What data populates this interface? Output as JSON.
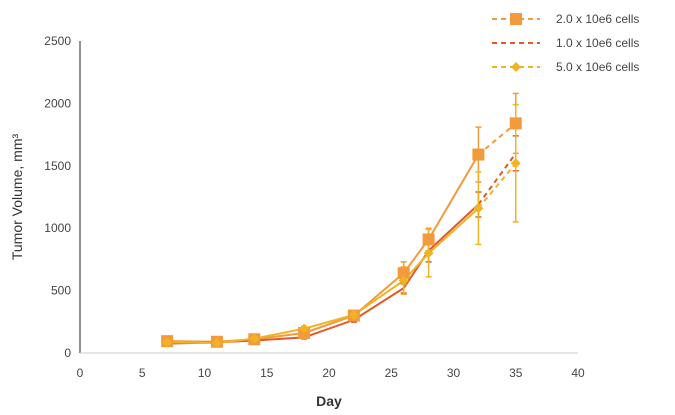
{
  "chart_data": {
    "type": "line",
    "title": "",
    "xlabel": "Day",
    "ylabel": "Tumor Volume, mm³",
    "xlim": [
      0,
      40
    ],
    "ylim": [
      0,
      2500
    ],
    "xticks": [
      0,
      5,
      10,
      15,
      20,
      25,
      30,
      35,
      40
    ],
    "yticks": [
      0,
      500,
      1000,
      1500,
      2000,
      2500
    ],
    "grid": false,
    "legend_position": "top-right",
    "series": [
      {
        "name": "2.0 x 10e6 cells",
        "color": "#F39A3C",
        "marker": "square",
        "points": [
          {
            "x": 7,
            "y": 95,
            "err": 5
          },
          {
            "x": 11,
            "y": 90,
            "err": 5
          },
          {
            "x": 14,
            "y": 110,
            "err": 8
          },
          {
            "x": 18,
            "y": 160,
            "err": 15
          },
          {
            "x": 22,
            "y": 300,
            "err": 20
          },
          {
            "x": 26,
            "y": 640,
            "err": 90
          },
          {
            "x": 28,
            "y": 910,
            "err": 90
          },
          {
            "x": 32,
            "y": 1590,
            "err": 220
          },
          {
            "x": 35,
            "y": 1840,
            "err": 240
          }
        ],
        "dashed_from": 32
      },
      {
        "name": "1.0 x 10e6 cells",
        "color": "#E0592A",
        "marker": "none",
        "points": [
          {
            "x": 7,
            "y": 75,
            "err": 5
          },
          {
            "x": 11,
            "y": 85,
            "err": 5
          },
          {
            "x": 14,
            "y": 100,
            "err": 8
          },
          {
            "x": 18,
            "y": 125,
            "err": 12
          },
          {
            "x": 22,
            "y": 265,
            "err": 18
          },
          {
            "x": 26,
            "y": 520,
            "err": 40
          },
          {
            "x": 28,
            "y": 820,
            "err": 90
          },
          {
            "x": 32,
            "y": 1190,
            "err": 100
          },
          {
            "x": 35,
            "y": 1600,
            "err": 140
          }
        ],
        "dashed_from": 32
      },
      {
        "name": "5.0 x 10e6 cells",
        "color": "#F0B323",
        "marker": "diamond",
        "points": [
          {
            "x": 7,
            "y": 85,
            "err": 5
          },
          {
            "x": 11,
            "y": 80,
            "err": 5
          },
          {
            "x": 14,
            "y": 115,
            "err": 8
          },
          {
            "x": 18,
            "y": 195,
            "err": 20
          },
          {
            "x": 22,
            "y": 305,
            "err": 25
          },
          {
            "x": 26,
            "y": 580,
            "err": 110
          },
          {
            "x": 28,
            "y": 800,
            "err": 190
          },
          {
            "x": 32,
            "y": 1160,
            "err": 290
          },
          {
            "x": 35,
            "y": 1520,
            "err": 470
          }
        ],
        "dashed_from": 32
      }
    ]
  }
}
